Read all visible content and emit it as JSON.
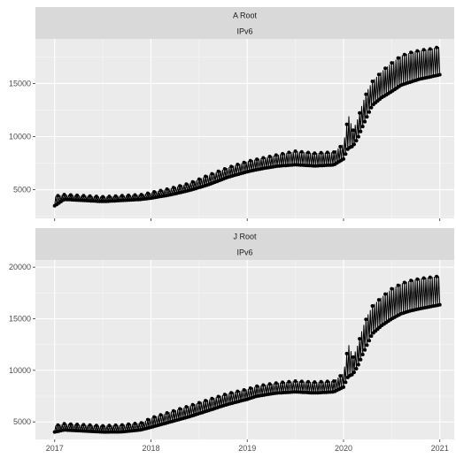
{
  "chart_data": [
    {
      "type": "line",
      "strip_top": "A Root",
      "strip_bottom": "IPv6",
      "x_ticks": [
        "2017",
        "2018",
        "2019",
        "2020",
        "2021"
      ],
      "y_ticks": [
        "5000",
        "10000",
        "15000"
      ],
      "ylim": [
        2300,
        19200
      ],
      "xlim": [
        2016.8,
        2021.15
      ],
      "grid": true,
      "series": [
        {
          "x": [
            2017.0,
            2017.1,
            2017.3,
            2017.5,
            2017.7,
            2017.9,
            2018.0,
            2018.2,
            2018.4,
            2018.6,
            2018.8,
            2019.0,
            2019.1,
            2019.3,
            2019.5,
            2019.7,
            2019.9,
            2020.0,
            2020.05,
            2020.1,
            2020.15,
            2020.2,
            2020.25,
            2020.3,
            2020.4,
            2020.5,
            2020.6,
            2020.7,
            2020.8,
            2020.9,
            2021.0
          ],
          "lo": [
            3300,
            4000,
            3900,
            3800,
            3900,
            4000,
            4100,
            4400,
            4800,
            5300,
            6000,
            6500,
            6700,
            7000,
            7100,
            7000,
            7100,
            7600,
            8300,
            8800,
            9500,
            10500,
            11500,
            12500,
            13200,
            13700,
            14300,
            14600,
            14900,
            15100,
            15300
          ],
          "hi": [
            4500,
            4600,
            4500,
            4400,
            4500,
            4600,
            4800,
            5200,
            5700,
            6500,
            7200,
            7800,
            8000,
            8400,
            8800,
            8600,
            8700,
            9500,
            12500,
            10800,
            12000,
            13500,
            14700,
            15500,
            16500,
            17300,
            18000,
            18300,
            18500,
            18600,
            18800
          ]
        }
      ]
    },
    {
      "type": "line",
      "strip_top": "J Root",
      "strip_bottom": "IPv6",
      "x_ticks": [
        "2017",
        "2018",
        "2019",
        "2020",
        "2021"
      ],
      "y_ticks": [
        "5000",
        "10000",
        "15000",
        "20000"
      ],
      "ylim": [
        3300,
        20700
      ],
      "xlim": [
        2016.8,
        2021.15
      ],
      "grid": true,
      "series": [
        {
          "x": [
            2017.0,
            2017.1,
            2017.3,
            2017.5,
            2017.7,
            2017.9,
            2018.0,
            2018.2,
            2018.4,
            2018.6,
            2018.8,
            2019.0,
            2019.1,
            2019.3,
            2019.5,
            2019.7,
            2019.9,
            2020.0,
            2020.05,
            2020.1,
            2020.15,
            2020.2,
            2020.25,
            2020.3,
            2020.4,
            2020.5,
            2020.6,
            2020.7,
            2020.8,
            2020.9,
            2021.0
          ],
          "lo": [
            3900,
            4100,
            4000,
            3900,
            3900,
            4100,
            4300,
            4800,
            5300,
            5900,
            6500,
            7000,
            7300,
            7600,
            7700,
            7600,
            7700,
            8100,
            8800,
            9300,
            10000,
            11000,
            12000,
            13000,
            13800,
            14400,
            14900,
            15200,
            15400,
            15600,
            15800
          ],
          "hi": [
            4700,
            4900,
            4800,
            4700,
            4800,
            5000,
            5500,
            6100,
            6700,
            7300,
            7900,
            8300,
            8600,
            8900,
            9100,
            9000,
            9100,
            9900,
            13000,
            11500,
            12800,
            14500,
            15700,
            16600,
            17500,
            18300,
            18800,
            19100,
            19300,
            19400,
            19500
          ]
        }
      ]
    }
  ]
}
